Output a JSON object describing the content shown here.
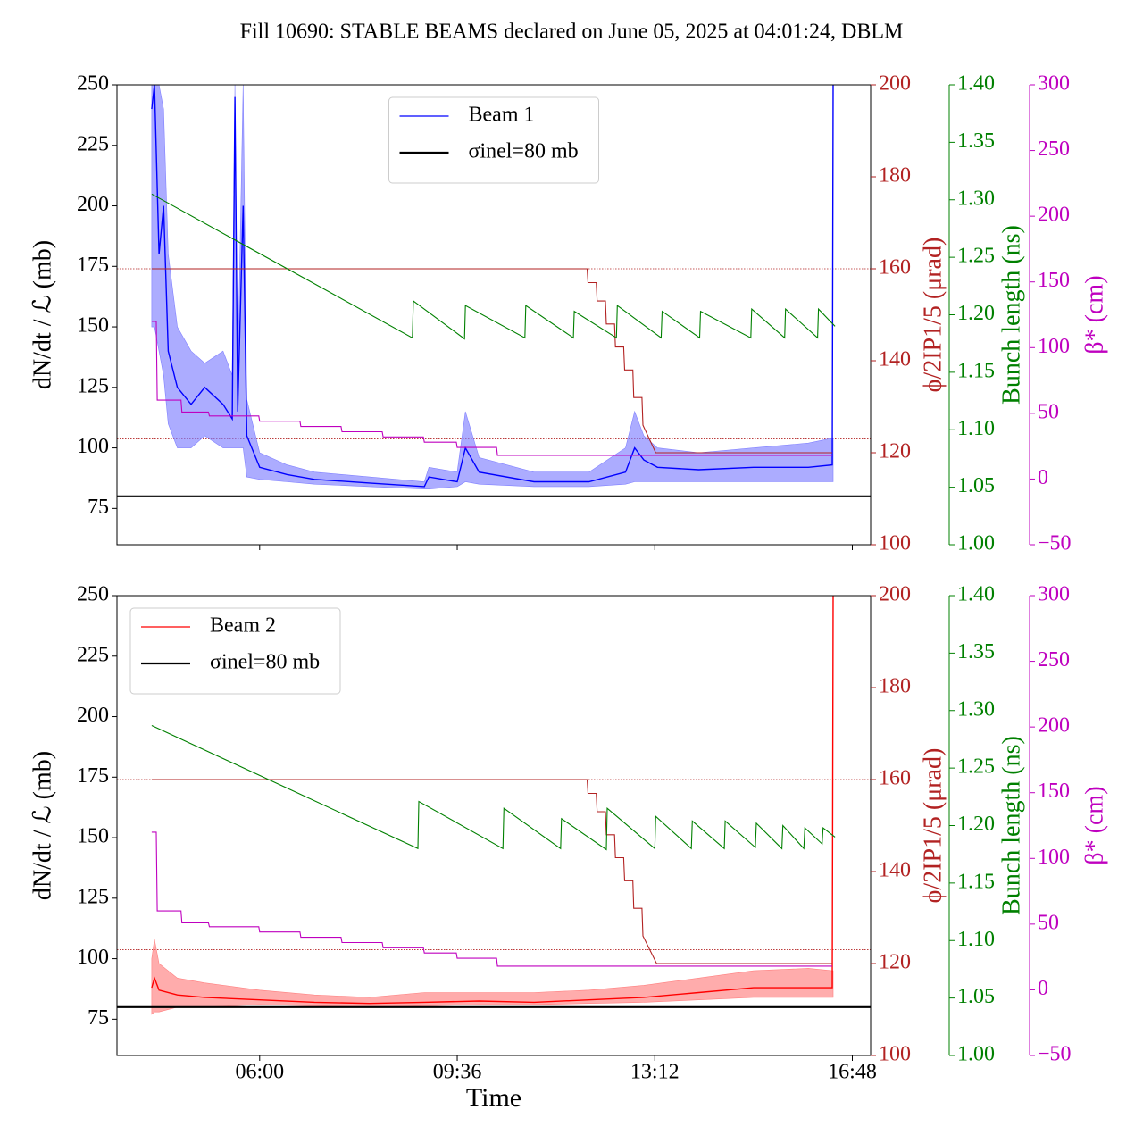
{
  "chart_data": [
    {
      "type": "line",
      "title": "Fill 10690: STABLE BEAMS declared on June 05, 2025 at 04:01:24, DBLM",
      "y_label": "dN/dt / ℒ (mb)",
      "y2_label": "ϕ/2IP1/5 (μrad)",
      "y3_label": "Bunch length (ns)",
      "y4_label": "β* (cm)",
      "xlim": [
        "03:24",
        "17:08"
      ],
      "xticks": [
        "06:00",
        "09:36",
        "13:12",
        "16:48"
      ],
      "show_xtick_labels": false,
      "ylim": [
        60,
        250
      ],
      "yticks": [
        75,
        100,
        125,
        150,
        175,
        200,
        225,
        250
      ],
      "y2lim": [
        100,
        200
      ],
      "y2ticks": [
        100,
        120,
        140,
        160,
        180,
        200
      ],
      "y3lim": [
        1.0,
        1.4
      ],
      "y3ticks": [
        {
          "value": 1.0,
          "label": "1.00"
        },
        1.05,
        {
          "value": 1.1,
          "label": "1.10"
        },
        1.15,
        {
          "value": 1.2,
          "label": "1.20"
        },
        1.25,
        {
          "value": 1.3,
          "label": "1.30"
        },
        1.35,
        {
          "value": 1.4,
          "label": "1.40"
        }
      ],
      "y4lim": [
        -50,
        300
      ],
      "y4ticks": [
        {
          "value": -50,
          "label": "−50"
        },
        0,
        50,
        100,
        150,
        200,
        250,
        300
      ],
      "y2_reference_lines": [
        160,
        123
      ],
      "legend": "upper center",
      "series": [
        {
          "name": "Beam 1",
          "color": "#0000ff",
          "band_color": "#8080ff",
          "x": [
            "04:02",
            "04:05",
            "04:10",
            "04:15",
            "04:20",
            "04:30",
            "04:45",
            "05:00",
            "05:20",
            "05:30",
            "05:33",
            "05:36",
            "05:42",
            "05:46",
            "06:00",
            "06:30",
            "07:00",
            "08:00",
            "09:00",
            "09:05",
            "09:36",
            "09:45",
            "10:00",
            "11:00",
            "12:00",
            "12:40",
            "12:50",
            "13:00",
            "13:15",
            "14:00",
            "15:00",
            "16:00",
            "16:26",
            "16:27"
          ],
          "values": [
            240,
            250,
            180,
            200,
            140,
            125,
            118,
            125,
            118,
            112,
            245,
            115,
            200,
            105,
            92,
            89,
            87,
            85.5,
            84,
            88,
            86,
            100,
            90,
            86,
            86,
            90,
            100,
            95,
            92,
            91,
            92,
            92,
            93,
            250
          ],
          "band_lower": [
            150,
            150,
            140,
            130,
            110,
            100,
            100,
            105,
            100,
            100,
            100,
            100,
            100,
            88,
            87,
            86,
            85,
            84,
            83,
            83,
            84,
            86,
            85,
            84,
            84,
            85,
            86,
            86,
            86,
            86,
            86,
            86,
            86,
            86
          ],
          "band_upper": [
            250,
            250,
            250,
            240,
            180,
            150,
            140,
            135,
            140,
            130,
            250,
            130,
            250,
            120,
            98,
            93,
            90,
            88,
            86,
            92,
            90,
            115,
            96,
            90,
            90,
            100,
            115,
            105,
            100,
            98,
            100,
            102,
            104,
            104
          ]
        },
        {
          "name": "σinel=80 mb",
          "color": "#000000",
          "hline": 80
        },
        {
          "axis": "y2",
          "color": "#b22222",
          "x": [
            "04:02",
            "11:58",
            "11:59",
            "12:08",
            "12:09",
            "12:18",
            "12:19",
            "12:28",
            "12:29",
            "12:38",
            "12:39",
            "12:48",
            "12:49",
            "12:58",
            "12:59",
            "13:13",
            "16:26"
          ],
          "values": [
            160,
            160,
            157,
            157,
            153,
            153,
            148,
            148,
            143,
            143,
            138,
            138,
            132,
            132,
            126,
            120,
            120
          ]
        },
        {
          "axis": "y3",
          "color": "#008000",
          "x": [
            "04:02",
            "08:47",
            "08:48",
            "09:44",
            "09:45",
            "10:50",
            "10:51",
            "11:43",
            "11:44",
            "12:30",
            "12:31",
            "13:19",
            "13:20",
            "14:01",
            "14:02",
            "14:57",
            "14:58",
            "15:34",
            "15:35",
            "16:10",
            "16:11",
            "16:29"
          ],
          "values": [
            1.305,
            1.18,
            1.212,
            1.179,
            1.208,
            1.18,
            1.208,
            1.18,
            1.203,
            1.18,
            1.208,
            1.18,
            1.203,
            1.18,
            1.203,
            1.18,
            1.205,
            1.18,
            1.205,
            1.18,
            1.205,
            1.19
          ]
        },
        {
          "axis": "y4",
          "color": "#bf00bf",
          "x": [
            "04:02",
            "04:07",
            "04:08",
            "04:34",
            "04:35",
            "05:04",
            "05:05",
            "05:59",
            "06:00",
            "06:44",
            "06:45",
            "07:29",
            "07:30",
            "08:14",
            "08:15",
            "08:59",
            "09:00",
            "09:35",
            "09:36",
            "10:19",
            "10:20",
            "16:26"
          ],
          "values": [
            120,
            120,
            60,
            60,
            51,
            51,
            48,
            48,
            44,
            44,
            40,
            40,
            36,
            36,
            32,
            32,
            28,
            28,
            24,
            24,
            18,
            18
          ]
        }
      ]
    },
    {
      "type": "line",
      "x_label": "Time",
      "y_label": "dN/dt / ℒ (mb)",
      "y2_label": "ϕ/2IP1/5 (μrad)",
      "y3_label": "Bunch length (ns)",
      "y4_label": "β* (cm)",
      "xlim": [
        "03:24",
        "17:08"
      ],
      "xticks": [
        "06:00",
        "09:36",
        "13:12",
        "16:48"
      ],
      "show_xtick_labels": true,
      "ylim": [
        60,
        250
      ],
      "yticks": [
        75,
        100,
        125,
        150,
        175,
        200,
        225,
        250
      ],
      "y2lim": [
        100,
        200
      ],
      "y2ticks": [
        100,
        120,
        140,
        160,
        180,
        200
      ],
      "y3lim": [
        1.0,
        1.4
      ],
      "y3ticks": [
        {
          "value": 1.0,
          "label": "1.00"
        },
        1.05,
        {
          "value": 1.1,
          "label": "1.10"
        },
        1.15,
        {
          "value": 1.2,
          "label": "1.20"
        },
        1.25,
        {
          "value": 1.3,
          "label": "1.30"
        },
        1.35,
        {
          "value": 1.4,
          "label": "1.40"
        }
      ],
      "y4lim": [
        -50,
        300
      ],
      "y4ticks": [
        {
          "value": -50,
          "label": "−50"
        },
        0,
        50,
        100,
        150,
        200,
        250,
        300
      ],
      "y2_reference_lines": [
        160,
        123
      ],
      "legend": "upper left",
      "series": [
        {
          "name": "Beam 2",
          "color": "#ff0000",
          "band_color": "#ff8080",
          "x": [
            "04:02",
            "04:05",
            "04:10",
            "04:30",
            "05:00",
            "06:00",
            "07:00",
            "08:00",
            "09:00",
            "10:00",
            "11:00",
            "12:00",
            "13:00",
            "14:00",
            "15:00",
            "16:00",
            "16:26",
            "16:27"
          ],
          "values": [
            88,
            92,
            87,
            85,
            84,
            83,
            82,
            81.5,
            82,
            82.5,
            82,
            83,
            84,
            86,
            88,
            88,
            88,
            250
          ],
          "band_lower": [
            77,
            78,
            78,
            80,
            80,
            81,
            80.5,
            80,
            80.5,
            81,
            81,
            81.5,
            82,
            83,
            84,
            84,
            84,
            84
          ],
          "band_upper": [
            100,
            108,
            98,
            92,
            90,
            87,
            85,
            84,
            86,
            86,
            86,
            87,
            89,
            92,
            95,
            96,
            95,
            95
          ]
        },
        {
          "name": "σinel=80 mb",
          "color": "#000000",
          "hline": 80
        },
        {
          "axis": "y2",
          "color": "#b22222",
          "x": [
            "04:02",
            "11:58",
            "11:59",
            "12:08",
            "12:09",
            "12:18",
            "12:19",
            "12:28",
            "12:29",
            "12:38",
            "12:39",
            "12:48",
            "12:49",
            "12:58",
            "12:59",
            "13:14",
            "16:26"
          ],
          "values": [
            160,
            160,
            157,
            157,
            153,
            153,
            148,
            148,
            143,
            143,
            138,
            138,
            132,
            132,
            126,
            120,
            120
          ]
        },
        {
          "axis": "y3",
          "color": "#008000",
          "x": [
            "04:02",
            "08:53",
            "08:54",
            "10:26",
            "10:27",
            "11:29",
            "11:30",
            "12:19",
            "12:20",
            "13:12",
            "13:13",
            "13:52",
            "13:53",
            "14:28",
            "14:29",
            "15:02",
            "15:03",
            "15:31",
            "15:32",
            "15:55",
            "15:56",
            "16:15",
            "16:16",
            "16:29"
          ],
          "values": [
            1.287,
            1.18,
            1.221,
            1.18,
            1.215,
            1.18,
            1.206,
            1.179,
            1.215,
            1.18,
            1.208,
            1.18,
            1.204,
            1.18,
            1.204,
            1.181,
            1.202,
            1.18,
            1.2,
            1.18,
            1.198,
            1.184,
            1.198,
            1.19
          ]
        },
        {
          "axis": "y4",
          "color": "#bf00bf",
          "x": [
            "04:02",
            "04:07",
            "04:08",
            "04:34",
            "04:35",
            "05:04",
            "05:05",
            "05:59",
            "06:00",
            "06:44",
            "06:45",
            "07:29",
            "07:30",
            "08:14",
            "08:15",
            "08:59",
            "09:00",
            "09:35",
            "09:36",
            "10:19",
            "10:20",
            "16:26"
          ],
          "values": [
            120,
            120,
            60,
            60,
            51,
            51,
            48,
            48,
            44,
            44,
            40,
            40,
            36,
            36,
            32,
            32,
            28,
            28,
            24,
            24,
            18,
            18
          ]
        }
      ]
    }
  ]
}
